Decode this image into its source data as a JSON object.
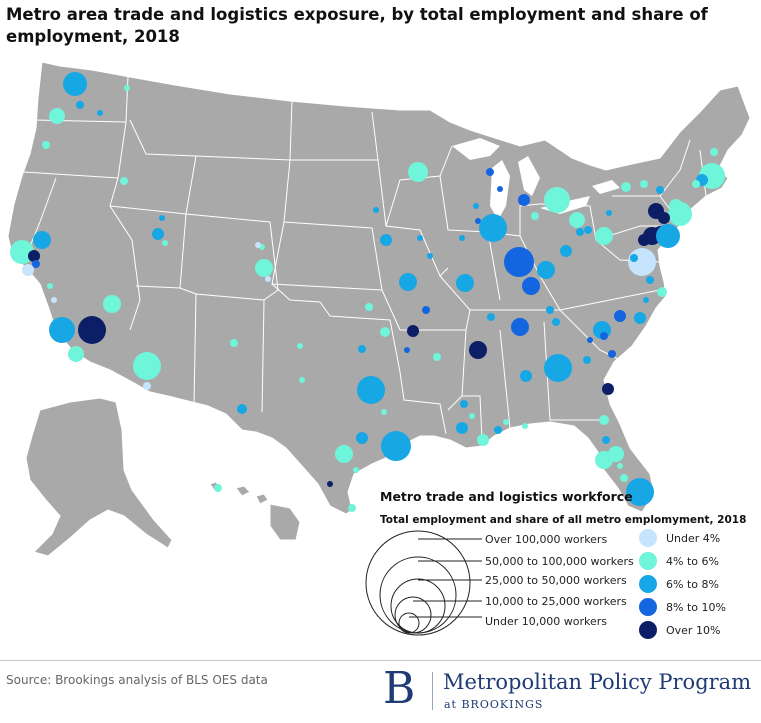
{
  "title": "Metro area trade and logistics exposure, by total employment and share of employment, 2018",
  "legend": {
    "title": "Metro trade and logistics workforce",
    "subtitle": "Total employment and share of all metro emplomyment, 2018",
    "sizes": [
      "Over 100,000 workers",
      "50,000 to 100,000 workers",
      "25,000 to 50,000 workers",
      "10,000 to 25,000 workers",
      "Under 10,000 workers"
    ],
    "shares": [
      {
        "label": "Under 4%",
        "color": "#c6e4fb"
      },
      {
        "label": "4% to 6%",
        "color": "#6ef5da"
      },
      {
        "label": "6% to 8%",
        "color": "#17a7e4"
      },
      {
        "label": "8% to 10%",
        "color": "#1466e0"
      },
      {
        "label": "Over 10%",
        "color": "#0c1f66"
      }
    ]
  },
  "map_colors": {
    "land": "#a9a9a9",
    "borders": "#ffffff",
    "background": "#ffffff"
  },
  "source": "Source: Brookings analysis of BLS OES data",
  "logo": {
    "letter": "B",
    "program": "Metropolitan Policy Program",
    "at": "at BROOKINGS"
  }
}
